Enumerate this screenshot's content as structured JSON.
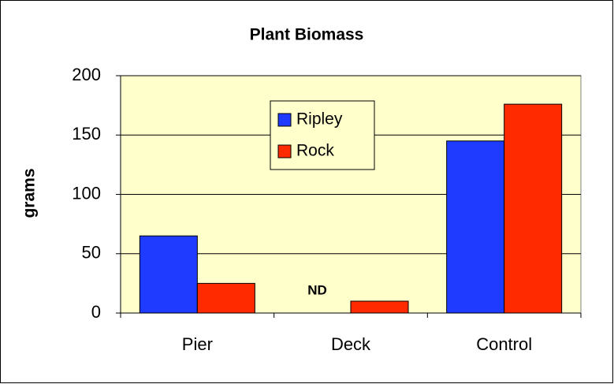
{
  "chart_data": {
    "type": "bar",
    "title": "Plant Biomass",
    "y_label": "grams",
    "categories": [
      "Pier",
      "Deck",
      "Control"
    ],
    "series": [
      {
        "name": "Ripley",
        "color": "#1f3bff",
        "values": [
          65,
          null,
          145
        ]
      },
      {
        "name": "Rock",
        "color": "#ff2a00",
        "values": [
          25,
          10,
          176
        ]
      }
    ],
    "annotations": [
      "ND"
    ],
    "ylim": [
      0,
      200
    ],
    "yticks": [
      0,
      50,
      100,
      150,
      200
    ],
    "grid": true,
    "legend": "upper center",
    "plot_background": "#ffffcc"
  }
}
